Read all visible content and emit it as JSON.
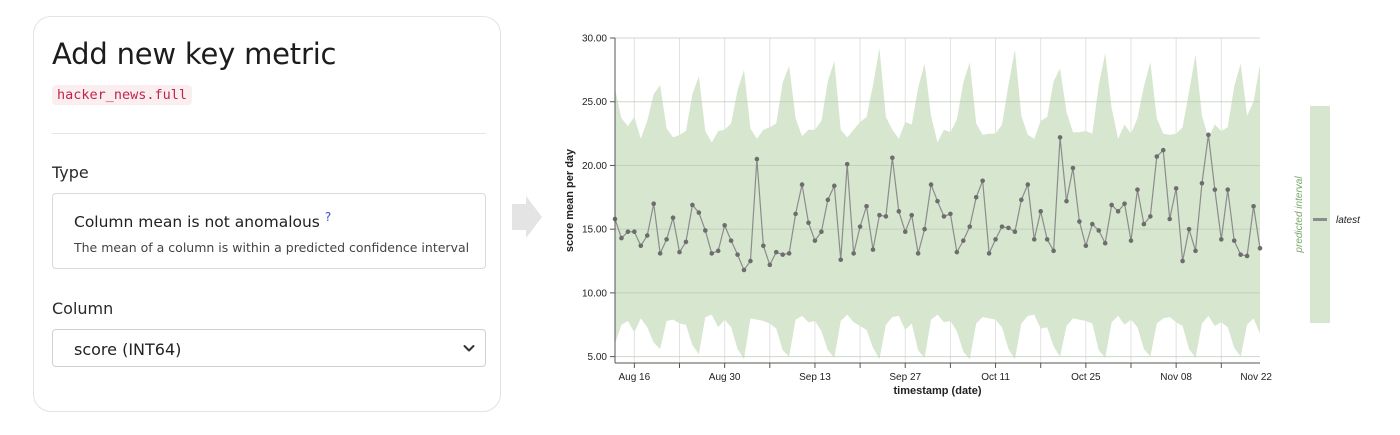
{
  "panel": {
    "title": "Add new key metric",
    "table_name": "hacker_news.full",
    "type_label": "Type",
    "type_option": {
      "name": "Column mean is not anomalous",
      "help": "?",
      "description": "The mean of a column is within a predicted confidence interval"
    },
    "column_label": "Column",
    "column_value": "score (INT64)"
  },
  "colors": {
    "band": "#d7e6cf",
    "line": "#8c8c8c",
    "point": "#6d6d6d",
    "legend_label": "#7aa66a",
    "chip_bg": "#fbeef1",
    "chip_text": "#c1244b",
    "help": "#3b4bd8"
  },
  "chart_data": {
    "type": "line",
    "xlabel": "timestamp (date)",
    "ylabel": "score mean per day",
    "ylim": [
      4.5,
      30
    ],
    "yticks": [
      "30.00",
      "25.00",
      "20.00",
      "15.00",
      "10.00",
      "5.00"
    ],
    "xtick_labels": [
      "Aug 16",
      "Aug 30",
      "Sep 13",
      "Sep 27",
      "Oct 11",
      "Oct 25",
      "Nov 08",
      "Nov 22"
    ],
    "x_range": [
      "Aug 13",
      "Nov 22"
    ],
    "grid": true,
    "legend": {
      "band_label": "predicted interval",
      "line_label": "latest",
      "placement": "right"
    },
    "series": [
      {
        "values": [
          15.8,
          14.3,
          14.8,
          14.8,
          13.7,
          14.5,
          17.0,
          13.1,
          14.2,
          15.9,
          13.2,
          14.0,
          16.9,
          16.3,
          14.9,
          13.1,
          13.3,
          15.3,
          14.1,
          13.0,
          11.8,
          12.5,
          20.5,
          13.7,
          12.2,
          13.2,
          13.0,
          13.1,
          16.2,
          18.5,
          15.5,
          14.1,
          14.8,
          17.3,
          18.4,
          12.6,
          20.1,
          13.1,
          15.2,
          16.8,
          13.4,
          16.1,
          16.0,
          20.6,
          16.4,
          14.8,
          16.1,
          13.1,
          15.0,
          18.5,
          17.2,
          16.0,
          16.2,
          13.2,
          14.1,
          15.2,
          17.5,
          18.8,
          13.1,
          14.2,
          15.2,
          15.1,
          14.8,
          17.3,
          18.5,
          14.2,
          16.4,
          14.2,
          13.3,
          22.2,
          17.2,
          19.8,
          15.6,
          13.7,
          15.4,
          14.9,
          13.9,
          16.9,
          16.4,
          17.0,
          14.1,
          18.1,
          15.4,
          16.0,
          20.7,
          21.2,
          15.8,
          18.2,
          12.5,
          15.0,
          13.3,
          18.6,
          22.4,
          18.1,
          14.2,
          18.1,
          14.1,
          13.0,
          12.9,
          16.8,
          13.5
        ],
        "band_upper": [
          26.0,
          23.7,
          23.1,
          23.8,
          22.1,
          23.5,
          25.6,
          26.3,
          22.9,
          22.2,
          22.4,
          22.7,
          25.6,
          27.0,
          22.7,
          21.8,
          22.7,
          22.8,
          23.3,
          25.9,
          27.5,
          22.9,
          22.1,
          22.8,
          23.0,
          23.3,
          26.5,
          27.8,
          23.7,
          22.3,
          22.8,
          22.8,
          23.5,
          26.6,
          28.2,
          22.8,
          22.2,
          22.8,
          23.4,
          23.8,
          26.3,
          29.2,
          23.8,
          22.8,
          22.1,
          23.4,
          23.2,
          26.1,
          28.0,
          23.9,
          21.8,
          22.8,
          22.6,
          23.6,
          26.5,
          28.1,
          23.3,
          22.4,
          22.5,
          22.5,
          23.2,
          26.3,
          29.1,
          23.9,
          22.4,
          22.1,
          23.5,
          23.8,
          26.6,
          27.6,
          24.2,
          22.6,
          22.6,
          22.7,
          22.5,
          26.3,
          28.8,
          24.5,
          22.1,
          23.2,
          22.5,
          23.7,
          26.2,
          28.1,
          23.7,
          22.5,
          22.4,
          22.5,
          23.0,
          25.8,
          28.7,
          23.9,
          22.2,
          23.2,
          22.7,
          23.0,
          26.2,
          28.0,
          23.9,
          25.0,
          27.9
        ],
        "band_lower": [
          6.0,
          7.5,
          7.8,
          6.9,
          8.0,
          7.3,
          6.1,
          5.6,
          7.8,
          7.9,
          7.6,
          7.5,
          5.9,
          5.2,
          8.1,
          8.3,
          7.3,
          7.9,
          7.3,
          5.6,
          4.8,
          8.0,
          7.9,
          7.8,
          7.6,
          7.2,
          5.5,
          5.0,
          7.9,
          8.2,
          7.7,
          7.8,
          7.0,
          5.5,
          4.9,
          7.8,
          8.3,
          7.7,
          7.4,
          7.1,
          5.7,
          4.8,
          7.5,
          8.1,
          8.2,
          7.1,
          7.6,
          5.5,
          4.9,
          7.9,
          8.3,
          7.7,
          7.8,
          7.0,
          5.4,
          4.8,
          7.6,
          8.1,
          8.0,
          7.9,
          7.3,
          5.6,
          4.8,
          7.6,
          8.2,
          8.3,
          7.2,
          7.3,
          5.8,
          5.0,
          7.4,
          8.0,
          7.9,
          7.8,
          7.6,
          5.5,
          4.9,
          7.7,
          8.2,
          7.5,
          7.9,
          7.3,
          5.6,
          5.0,
          7.6,
          8.0,
          8.1,
          7.7,
          7.4,
          5.6,
          4.9,
          7.6,
          8.2,
          7.4,
          7.7,
          7.3,
          5.7,
          5.0,
          7.5,
          8.0,
          6.8
        ]
      }
    ]
  }
}
